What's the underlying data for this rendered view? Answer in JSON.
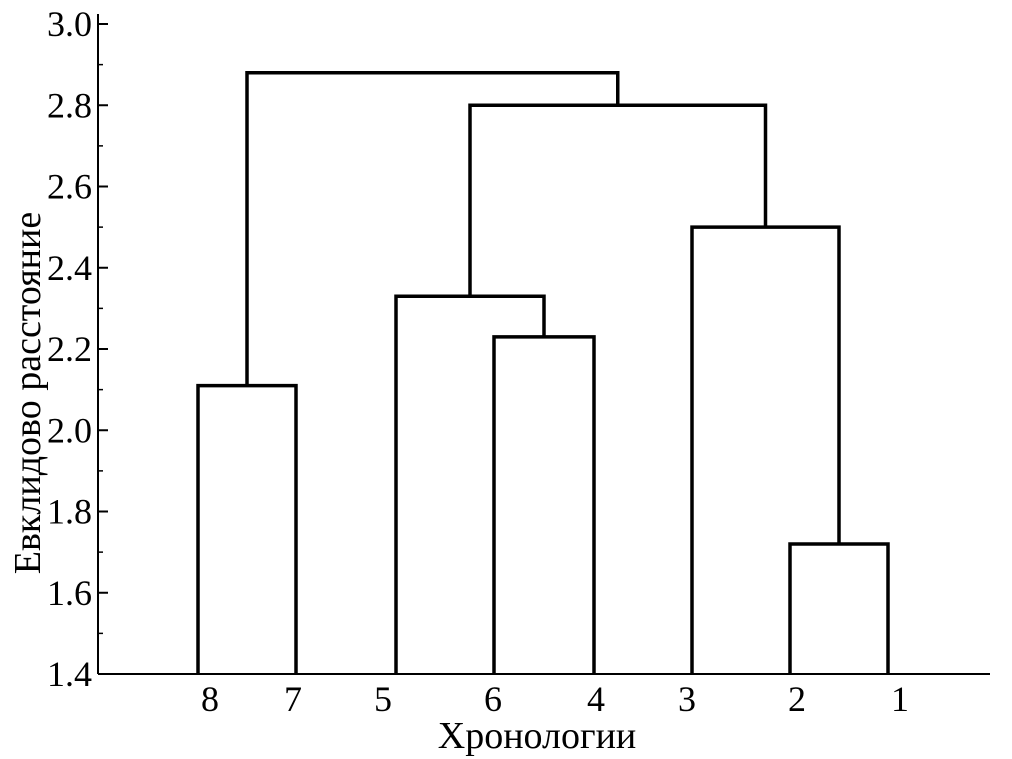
{
  "chart_data": {
    "type": "dendrogram",
    "title": "",
    "xlabel": "Хронологии",
    "ylabel": "Евклидово расстояние",
    "ylim": [
      1.4,
      3.0
    ],
    "y_ticks": [
      "1.4",
      "1.6",
      "1.8",
      "2.0",
      "2.2",
      "2.4",
      "2.6",
      "2.8",
      "3.0"
    ],
    "leaf_order": [
      "8",
      "7",
      "5",
      "6",
      "4",
      "3",
      "2",
      "1"
    ],
    "merges": [
      {
        "left": "8",
        "right": "7",
        "height": 2.11
      },
      {
        "left": "6",
        "right": "4",
        "height": 2.23
      },
      {
        "left": "5",
        "right": "(6,4)",
        "height": 2.33
      },
      {
        "left": "2",
        "right": "1",
        "height": 1.72
      },
      {
        "left": "3",
        "right": "(2,1)",
        "height": 2.5
      },
      {
        "left": "(5,(6,4))",
        "right": "(3,(2,1))",
        "height": 2.8
      },
      {
        "left": "(8,7)",
        "right": "((5,(6,4)),(3,(2,1)))",
        "height": 2.88
      }
    ],
    "grid": false,
    "legend": "none"
  },
  "colors": {
    "line": "#000000",
    "background": "#ffffff"
  }
}
